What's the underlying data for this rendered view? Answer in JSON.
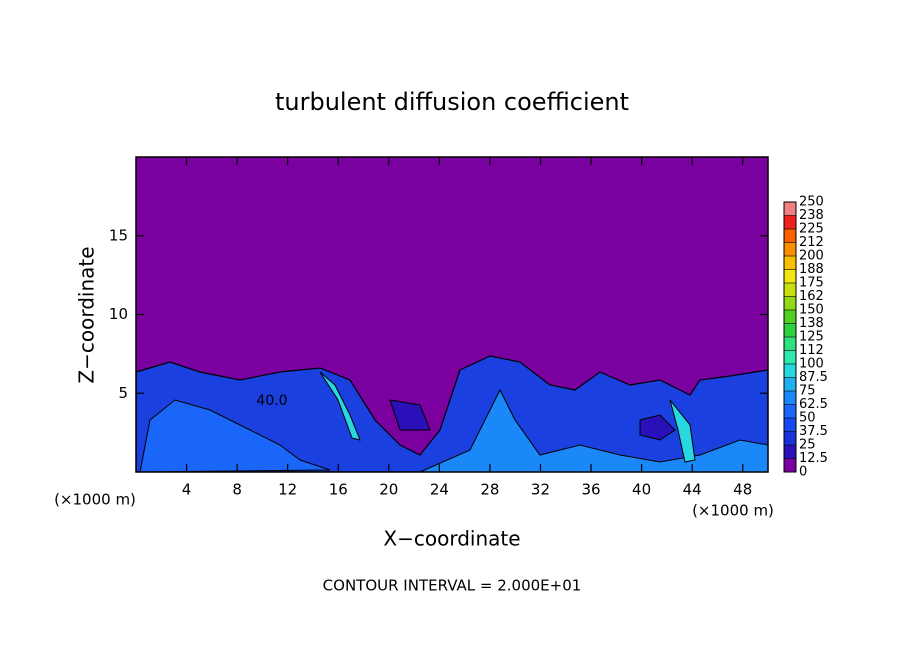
{
  "chart_data": {
    "type": "contour",
    "title": "turbulent diffusion coefficient",
    "x_label": "X−coordinate",
    "y_label": "Z−coordinate",
    "x_unit_left": "(×1000 m)",
    "x_unit_right": "(×1000 m)",
    "footer": "CONTOUR INTERVAL = 2.000E+01",
    "contour_label": "40.0",
    "xlim": [
      0,
      50
    ],
    "xticks": [
      4,
      8,
      12,
      16,
      20,
      24,
      28,
      32,
      36,
      40,
      44,
      48
    ],
    "ylim": [
      0,
      20
    ],
    "yticks": [
      5,
      10,
      15
    ],
    "levels": [
      0,
      12.5,
      25,
      37.5,
      50,
      62.5,
      75,
      87.5,
      100,
      {
        "value": 112.5,
        "label": "112"
      },
      125,
      {
        "value": 137.5,
        "label": "138"
      },
      150,
      {
        "value": 162.5,
        "label": "162"
      },
      175,
      {
        "value": 187.5,
        "label": "188"
      },
      200,
      {
        "value": 212.5,
        "label": "212"
      },
      225,
      {
        "value": 237.5,
        "label": "238"
      },
      250
    ],
    "colors": [
      "#7a00a0",
      "#2a10b8",
      "#1a30d8",
      "#1848f0",
      "#1a66f8",
      "#1a88f8",
      "#20b0f0",
      "#28d8e0",
      "#30e8b0",
      "#30e080",
      "#30d040",
      "#50d020",
      "#90d818",
      "#c8e010",
      "#f0e810",
      "#f8c000",
      "#f89000",
      "#f86000",
      "#f02020",
      "#f08080"
    ]
  }
}
